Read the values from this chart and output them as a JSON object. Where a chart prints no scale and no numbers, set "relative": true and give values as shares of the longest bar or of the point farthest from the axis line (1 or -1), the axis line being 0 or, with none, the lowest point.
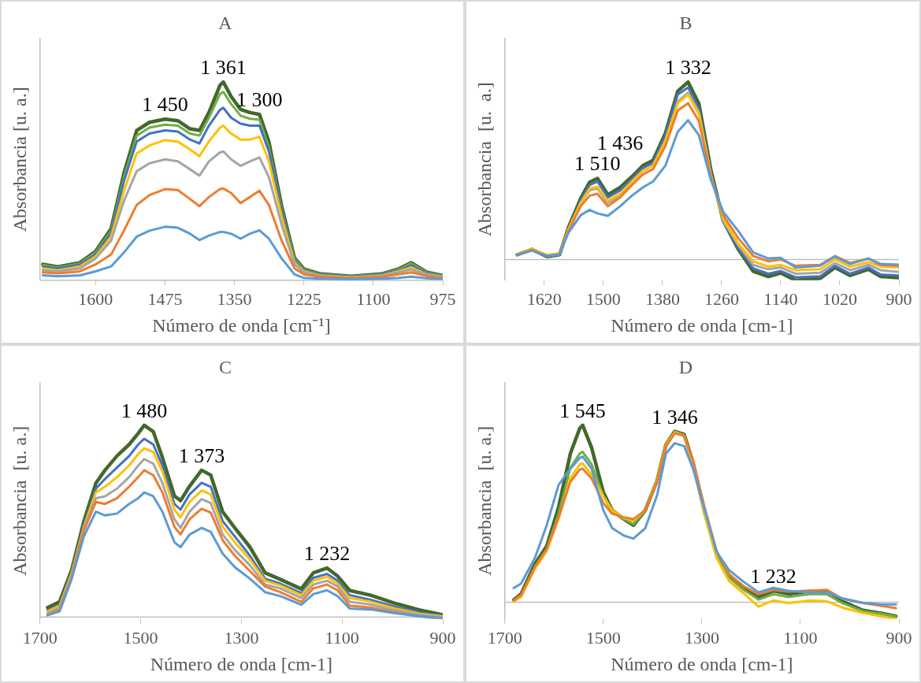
{
  "chart_data": [
    {
      "type": "line",
      "title": "A",
      "xlabel": "Número de onda [cm⁻¹]",
      "ylabel": "Absorbancia [u. a.]",
      "relative": true,
      "xlim": [
        1700,
        975
      ],
      "xticks": [
        1600,
        1475,
        1350,
        1225,
        1100,
        975
      ],
      "x": [
        1695,
        1668,
        1628,
        1600,
        1572,
        1549,
        1526,
        1503,
        1475,
        1452,
        1430,
        1413,
        1396,
        1376,
        1370,
        1356,
        1339,
        1322,
        1305,
        1288,
        1265,
        1242,
        1225,
        1197,
        1140,
        1083,
        1055,
        1032,
        1004,
        975
      ],
      "series": [
        {
          "color": "#5b9bd5",
          "values": [
            0.025,
            0.02,
            0.025,
            0.045,
            0.07,
            0.14,
            0.22,
            0.25,
            0.27,
            0.265,
            0.235,
            0.203,
            0.225,
            0.244,
            0.244,
            0.235,
            0.21,
            0.235,
            0.252,
            0.21,
            0.11,
            0.03,
            0.012,
            0.008,
            0.005,
            0.008,
            0.012,
            0.018,
            0.01,
            0.006
          ]
        },
        {
          "color": "#ed7d31",
          "values": [
            0.04,
            0.035,
            0.045,
            0.08,
            0.13,
            0.25,
            0.38,
            0.43,
            0.46,
            0.455,
            0.41,
            0.374,
            0.42,
            0.46,
            0.463,
            0.44,
            0.39,
            0.42,
            0.452,
            0.38,
            0.2,
            0.06,
            0.03,
            0.018,
            0.01,
            0.018,
            0.03,
            0.04,
            0.022,
            0.012
          ]
        },
        {
          "color": "#a5a5a5",
          "values": [
            0.05,
            0.045,
            0.06,
            0.11,
            0.2,
            0.4,
            0.55,
            0.59,
            0.61,
            0.6,
            0.56,
            0.528,
            0.6,
            0.645,
            0.65,
            0.61,
            0.577,
            0.6,
            0.62,
            0.52,
            0.28,
            0.08,
            0.04,
            0.022,
            0.013,
            0.022,
            0.04,
            0.055,
            0.028,
            0.016
          ]
        },
        {
          "color": "#ffc000",
          "values": [
            0.06,
            0.05,
            0.07,
            0.12,
            0.22,
            0.45,
            0.64,
            0.68,
            0.707,
            0.7,
            0.66,
            0.626,
            0.7,
            0.77,
            0.78,
            0.74,
            0.71,
            0.71,
            0.724,
            0.6,
            0.32,
            0.09,
            0.045,
            0.025,
            0.015,
            0.025,
            0.045,
            0.065,
            0.03,
            0.018
          ]
        },
        {
          "color": "#4472c4",
          "values": [
            0.07,
            0.06,
            0.08,
            0.13,
            0.24,
            0.5,
            0.7,
            0.74,
            0.756,
            0.75,
            0.71,
            0.69,
            0.78,
            0.86,
            0.87,
            0.82,
            0.79,
            0.78,
            0.78,
            0.65,
            0.35,
            0.1,
            0.05,
            0.03,
            0.018,
            0.03,
            0.05,
            0.075,
            0.035,
            0.02
          ]
        },
        {
          "color": "#70ad47",
          "values": [
            0.077,
            0.065,
            0.085,
            0.14,
            0.25,
            0.52,
            0.73,
            0.77,
            0.785,
            0.78,
            0.74,
            0.73,
            0.82,
            0.94,
            0.95,
            0.89,
            0.83,
            0.815,
            0.81,
            0.67,
            0.36,
            0.11,
            0.055,
            0.032,
            0.019,
            0.032,
            0.055,
            0.085,
            0.039,
            0.023
          ]
        },
        {
          "color": "#43682b",
          "values": [
            0.081,
            0.068,
            0.089,
            0.146,
            0.26,
            0.54,
            0.756,
            0.797,
            0.813,
            0.805,
            0.764,
            0.756,
            0.846,
            0.984,
            1,
            0.927,
            0.862,
            0.846,
            0.837,
            0.699,
            0.374,
            0.114,
            0.057,
            0.033,
            0.02,
            0.033,
            0.057,
            0.089,
            0.041,
            0.024
          ]
        }
      ],
      "annotations": [
        {
          "text": "1 450",
          "x": 1475,
          "y": 0.813
        },
        {
          "text": "1 361",
          "x": 1370,
          "y": 1
        },
        {
          "text": "1 300",
          "x": 1305,
          "y": 0.837
        }
      ]
    },
    {
      "type": "line",
      "title": "B",
      "xlabel": "Número de onda [cm-1]",
      "ylabel": "Absorbancia  [u.  a.]",
      "relative": true,
      "xlim": [
        1700,
        900
      ],
      "xticks": [
        1620,
        1500,
        1380,
        1260,
        1140,
        1020,
        900
      ],
      "x": [
        1675,
        1645,
        1614,
        1589,
        1571,
        1546,
        1528,
        1512,
        1491,
        1466,
        1442,
        1420,
        1399,
        1374,
        1349,
        1328,
        1306,
        1282,
        1257,
        1226,
        1196,
        1165,
        1140,
        1110,
        1060,
        1030,
        999,
        962,
        937,
        900
      ],
      "series": [
        {
          "color": "#5b9bd5",
          "values": [
            0.027,
            0.05,
            0.02,
            0.03,
            0.15,
            0.25,
            0.28,
            0.26,
            0.246,
            0.3,
            0.36,
            0.406,
            0.44,
            0.53,
            0.72,
            0.785,
            0.7,
            0.45,
            0.27,
            0.16,
            0.04,
            0.006,
            0.01,
            -0.045,
            -0.035,
            0.016,
            -0.025,
            0.006,
            -0.025,
            -0.029
          ]
        },
        {
          "color": "#ed7d31",
          "values": [
            0.027,
            0.055,
            0.02,
            0.03,
            0.16,
            0.3,
            0.36,
            0.37,
            0.3,
            0.35,
            0.42,
            0.48,
            0.51,
            0.64,
            0.84,
            0.881,
            0.78,
            0.47,
            0.25,
            0.12,
            0.02,
            -0.01,
            0.0,
            -0.035,
            -0.03,
            0.02,
            -0.02,
            0.005,
            -0.03,
            -0.035
          ]
        },
        {
          "color": "#ffc000",
          "values": [
            0.03,
            0.06,
            0.025,
            0.035,
            0.17,
            0.32,
            0.4,
            0.41,
            0.33,
            0.37,
            0.44,
            0.5,
            0.53,
            0.67,
            0.88,
            0.93,
            0.82,
            0.48,
            0.23,
            0.09,
            -0.01,
            -0.04,
            -0.03,
            -0.06,
            -0.055,
            0.0,
            -0.04,
            -0.015,
            -0.04,
            -0.045
          ]
        },
        {
          "color": "#a5a5a5",
          "values": [
            0.027,
            0.055,
            0.02,
            0.03,
            0.17,
            0.32,
            0.39,
            0.4,
            0.318,
            0.358,
            0.44,
            0.5,
            0.53,
            0.67,
            0.89,
            0.94,
            0.83,
            0.48,
            0.22,
            0.08,
            -0.03,
            -0.055,
            -0.045,
            -0.08,
            -0.075,
            -0.02,
            -0.06,
            -0.03,
            -0.06,
            -0.07
          ]
        },
        {
          "color": "#4472c4",
          "values": [
            0.027,
            0.055,
            0.018,
            0.028,
            0.175,
            0.335,
            0.42,
            0.44,
            0.35,
            0.39,
            0.455,
            0.515,
            0.545,
            0.7,
            0.93,
            0.97,
            0.85,
            0.495,
            0.215,
            0.065,
            -0.05,
            -0.08,
            -0.065,
            -0.1,
            -0.095,
            -0.035,
            -0.08,
            -0.045,
            -0.085,
            -0.09
          ]
        },
        {
          "color": "#43682b",
          "values": [
            0.027,
            0.057,
            0.016,
            0.027,
            0.18,
            0.344,
            0.436,
            0.457,
            0.365,
            0.406,
            0.467,
            0.529,
            0.559,
            0.713,
            0.949,
            1,
            0.877,
            0.508,
            0.221,
            0.057,
            -0.066,
            -0.096,
            -0.076,
            -0.117,
            -0.107,
            -0.045,
            -0.09,
            -0.055,
            -0.096,
            -0.102
          ]
        }
      ],
      "annotations": [
        {
          "text": "1 510",
          "x": 1512,
          "y": 0.457
        },
        {
          "text": "1 436",
          "x": 1466,
          "y": 0.406
        },
        {
          "text": "1 332",
          "x": 1328,
          "y": 1
        }
      ]
    },
    {
      "type": "line",
      "title": "C",
      "xlabel": "Número de onda [cm-1]",
      "ylabel": "Absorbancia  [u. a.]",
      "relative": true,
      "xlim": [
        1700,
        900
      ],
      "xticks": [
        1700,
        1500,
        1300,
        1100,
        900
      ],
      "x": [
        1685,
        1661,
        1637,
        1613,
        1589,
        1571,
        1547,
        1523,
        1505,
        1493,
        1475,
        1457,
        1433,
        1421,
        1403,
        1379,
        1361,
        1337,
        1313,
        1283,
        1253,
        1223,
        1181,
        1157,
        1130,
        1109,
        1085,
        1043,
        995,
        947,
        902
      ],
      "series": [
        {
          "color": "#5b9bd5",
          "values": [
            0.01,
            0.03,
            0.2,
            0.42,
            0.55,
            0.53,
            0.54,
            0.59,
            0.62,
            0.65,
            0.63,
            0.55,
            0.39,
            0.365,
            0.43,
            0.465,
            0.445,
            0.33,
            0.26,
            0.2,
            0.13,
            0.11,
            0.065,
            0.12,
            0.14,
            0.11,
            0.045,
            0.04,
            0.02,
            0.005,
            -0.005
          ]
        },
        {
          "color": "#ed7d31",
          "values": [
            0.01,
            0.04,
            0.21,
            0.45,
            0.6,
            0.59,
            0.62,
            0.68,
            0.73,
            0.766,
            0.74,
            0.65,
            0.47,
            0.431,
            0.51,
            0.565,
            0.545,
            0.4,
            0.32,
            0.24,
            0.16,
            0.13,
            0.08,
            0.15,
            0.17,
            0.14,
            0.06,
            0.05,
            0.025,
            0.005,
            -0.01
          ]
        },
        {
          "color": "#a5a5a5",
          "values": [
            0.02,
            0.05,
            0.22,
            0.46,
            0.62,
            0.63,
            0.67,
            0.73,
            0.79,
            0.824,
            0.8,
            0.7,
            0.51,
            0.465,
            0.55,
            0.615,
            0.595,
            0.43,
            0.35,
            0.27,
            0.17,
            0.15,
            0.1,
            0.17,
            0.19,
            0.16,
            0.08,
            0.065,
            0.035,
            0.012,
            0.0
          ]
        },
        {
          "color": "#ffc000",
          "values": [
            0.03,
            0.06,
            0.23,
            0.47,
            0.65,
            0.68,
            0.73,
            0.79,
            0.85,
            0.88,
            0.86,
            0.76,
            0.56,
            0.52,
            0.6,
            0.66,
            0.64,
            0.47,
            0.39,
            0.3,
            0.19,
            0.165,
            0.115,
            0.19,
            0.21,
            0.175,
            0.1,
            0.08,
            0.045,
            0.018,
            0.005
          ]
        },
        {
          "color": "#4472c4",
          "values": [
            0.035,
            0.065,
            0.235,
            0.48,
            0.67,
            0.72,
            0.78,
            0.84,
            0.9,
            0.93,
            0.9,
            0.79,
            0.59,
            0.56,
            0.64,
            0.7,
            0.68,
            0.5,
            0.42,
            0.32,
            0.2,
            0.175,
            0.125,
            0.205,
            0.225,
            0.19,
            0.115,
            0.09,
            0.055,
            0.025,
            0.008
          ]
        },
        {
          "color": "#43682b",
          "values": [
            0.05,
            0.08,
            0.247,
            0.498,
            0.699,
            0.766,
            0.841,
            0.9,
            0.958,
            1,
            0.967,
            0.833,
            0.632,
            0.607,
            0.682,
            0.766,
            0.741,
            0.548,
            0.465,
            0.365,
            0.231,
            0.197,
            0.147,
            0.231,
            0.256,
            0.214,
            0.139,
            0.114,
            0.072,
            0.038,
            0.013
          ]
        }
      ],
      "annotations": [
        {
          "text": "1 480",
          "x": 1493,
          "y": 1
        },
        {
          "text": "1 373",
          "x": 1379,
          "y": 0.766
        },
        {
          "text": "1 232",
          "x": 1130,
          "y": 0.256
        }
      ]
    },
    {
      "type": "line",
      "title": "D",
      "xlabel": "Número de onda [cm-1]",
      "ylabel": "Absorbancia  [u. a.]",
      "relative": true,
      "xlim": [
        1700,
        900
      ],
      "xticks": [
        1700,
        1500,
        1300,
        1100,
        900
      ],
      "x": [
        1682,
        1667,
        1639,
        1615,
        1591,
        1567,
        1548,
        1542,
        1524,
        1500,
        1482,
        1458,
        1439,
        1415,
        1391,
        1373,
        1355,
        1336,
        1318,
        1294,
        1270,
        1245,
        1215,
        1185,
        1155,
        1124,
        1082,
        1046,
        1015,
        973,
        936,
        906
      ],
      "series": [
        {
          "color": "#5b9bd5",
          "values": [
            0.08,
            0.106,
            0.25,
            0.435,
            0.663,
            0.755,
            0.815,
            0.823,
            0.755,
            0.519,
            0.418,
            0.376,
            0.36,
            0.418,
            0.604,
            0.84,
            0.899,
            0.882,
            0.755,
            0.519,
            0.283,
            0.182,
            0.115,
            0.056,
            0.081,
            0.064,
            0.056,
            0.056,
            0.022,
            -0.003,
            -0.012,
            -0.012
          ]
        },
        {
          "color": "#ed7d31",
          "values": [
            0.01,
            0.04,
            0.2,
            0.3,
            0.48,
            0.68,
            0.75,
            0.755,
            0.7,
            0.56,
            0.5,
            0.48,
            0.47,
            0.52,
            0.68,
            0.88,
            0.955,
            0.94,
            0.8,
            0.53,
            0.29,
            0.16,
            0.09,
            0.045,
            0.07,
            0.06,
            0.065,
            0.07,
            0.02,
            -0.005,
            -0.02,
            -0.034
          ]
        },
        {
          "color": "#ffc000",
          "values": [
            0.005,
            0.03,
            0.19,
            0.29,
            0.47,
            0.7,
            0.78,
            0.785,
            0.72,
            0.6,
            0.52,
            0.475,
            0.46,
            0.52,
            0.69,
            0.89,
            0.96,
            0.94,
            0.78,
            0.49,
            0.25,
            0.12,
            0.05,
            -0.025,
            0.01,
            -0.005,
            0.01,
            0.005,
            -0.03,
            -0.06,
            -0.08,
            -0.095
          ]
        },
        {
          "color": "#70ad47",
          "values": [
            0.01,
            0.04,
            0.2,
            0.3,
            0.5,
            0.76,
            0.84,
            0.85,
            0.78,
            0.6,
            0.51,
            0.47,
            0.44,
            0.52,
            0.69,
            0.89,
            0.965,
            0.945,
            0.785,
            0.5,
            0.26,
            0.14,
            0.07,
            0.015,
            0.045,
            0.03,
            0.045,
            0.045,
            -0.005,
            -0.05,
            -0.065,
            -0.08
          ]
        },
        {
          "color": "#43682b",
          "values": [
            0.013,
            0.047,
            0.216,
            0.317,
            0.536,
            0.84,
            0.983,
            1,
            0.874,
            0.621,
            0.519,
            0.469,
            0.435,
            0.519,
            0.688,
            0.89,
            0.966,
            0.949,
            0.789,
            0.503,
            0.266,
            0.148,
            0.081,
            0.03,
            0.064,
            0.047,
            0.061,
            0.056,
            0.005,
            -0.046,
            -0.062,
            -0.079
          ]
        }
      ],
      "annotations": [
        {
          "text": "1 545",
          "x": 1542,
          "y": 1
        },
        {
          "text": "1 346",
          "x": 1355,
          "y": 0.966
        },
        {
          "text": "1 232",
          "x": 1155,
          "y": 0.064
        }
      ]
    }
  ]
}
